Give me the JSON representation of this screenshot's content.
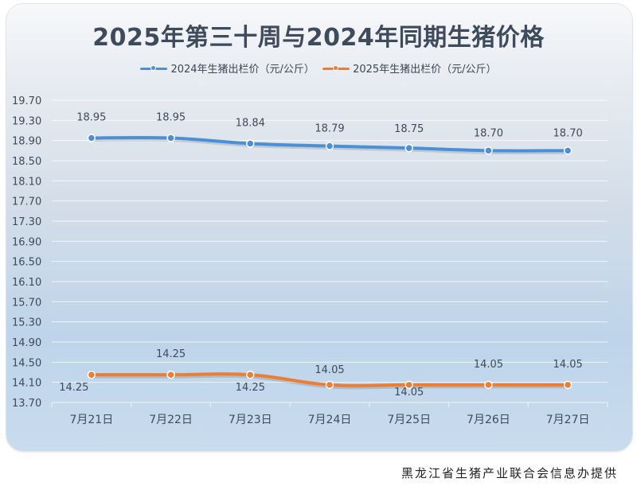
{
  "chart_data": {
    "type": "line",
    "title": "2025年第三十周与2024年同期生猪价格",
    "xlabel": "",
    "ylabel": "",
    "categories": [
      "7月21日",
      "7月22日",
      "7月23日",
      "7月24日",
      "7月25日",
      "7月26日",
      "7月27日"
    ],
    "series": [
      {
        "name": "2024年生猪出栏价（元/公斤）",
        "color": "#4a90d9",
        "values": [
          18.95,
          18.95,
          18.84,
          18.79,
          18.75,
          18.7,
          18.7
        ]
      },
      {
        "name": "2025年生猪出栏价（元/公斤）",
        "color": "#ed7d31",
        "values": [
          14.25,
          14.25,
          14.25,
          14.05,
          14.05,
          14.05,
          14.05
        ]
      }
    ],
    "yticks": [
      "19.70",
      "19.30",
      "18.90",
      "18.50",
      "18.10",
      "17.70",
      "17.30",
      "16.90",
      "16.50",
      "16.10",
      "15.70",
      "15.30",
      "14.90",
      "14.50",
      "14.10",
      "13.70"
    ],
    "ylim": [
      13.7,
      19.7
    ],
    "grid": true,
    "legend_position": "top",
    "smooth": true
  },
  "footer": {
    "source": "黑龙江省生猪产业联合会信息办提供"
  }
}
